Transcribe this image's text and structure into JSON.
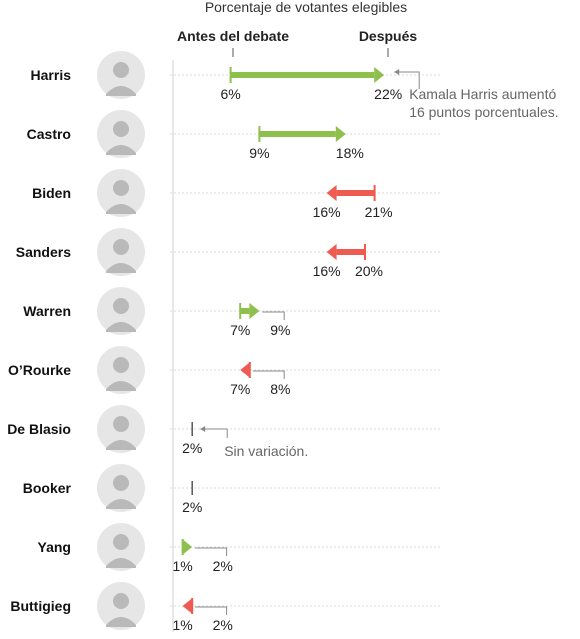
{
  "chart_data": {
    "type": "arrow",
    "title": "Porcentaje de votantes elegibles",
    "before_label": "Antes del debate",
    "after_label": "Después",
    "candidates": [
      {
        "name": "Harris",
        "before": 6,
        "after": 22,
        "before_label": "6%",
        "after_label": "22%"
      },
      {
        "name": "Castro",
        "before": 9,
        "after": 18,
        "before_label": "9%",
        "after_label": "18%"
      },
      {
        "name": "Biden",
        "before": 21,
        "after": 16,
        "before_label": "21%",
        "after_label": "16%"
      },
      {
        "name": "Sanders",
        "before": 20,
        "after": 16,
        "before_label": "20%",
        "after_label": "16%"
      },
      {
        "name": "Warren",
        "before": 7,
        "after": 9,
        "before_label": "7%",
        "after_label": "9%"
      },
      {
        "name": "O’Rourke",
        "before": 8,
        "after": 7,
        "before_label": "8%",
        "after_label": "7%"
      },
      {
        "name": "De Blasio",
        "before": 2,
        "after": 2,
        "before_label": "2%",
        "after_label": "2%"
      },
      {
        "name": "Booker",
        "before": 2,
        "after": 2,
        "before_label": "2%",
        "after_label": "2%"
      },
      {
        "name": "Yang",
        "before": 1,
        "after": 2,
        "before_label": "1%",
        "after_label": "2%"
      },
      {
        "name": "Buttigieg",
        "before": 2,
        "after": 1,
        "before_label": "2%",
        "after_label": "1%"
      }
    ],
    "annotations": [
      {
        "candidate": "Harris",
        "lines": [
          "Kamala Harris aumentó",
          "16 puntos porcentuales."
        ]
      },
      {
        "candidate": "De Blasio",
        "lines": [
          "Sin variación."
        ]
      }
    ],
    "colors": {
      "increase": "#8dc04d",
      "decrease": "#ee5b51",
      "neutral": "#555555",
      "grid": "#d9d9d9"
    }
  }
}
